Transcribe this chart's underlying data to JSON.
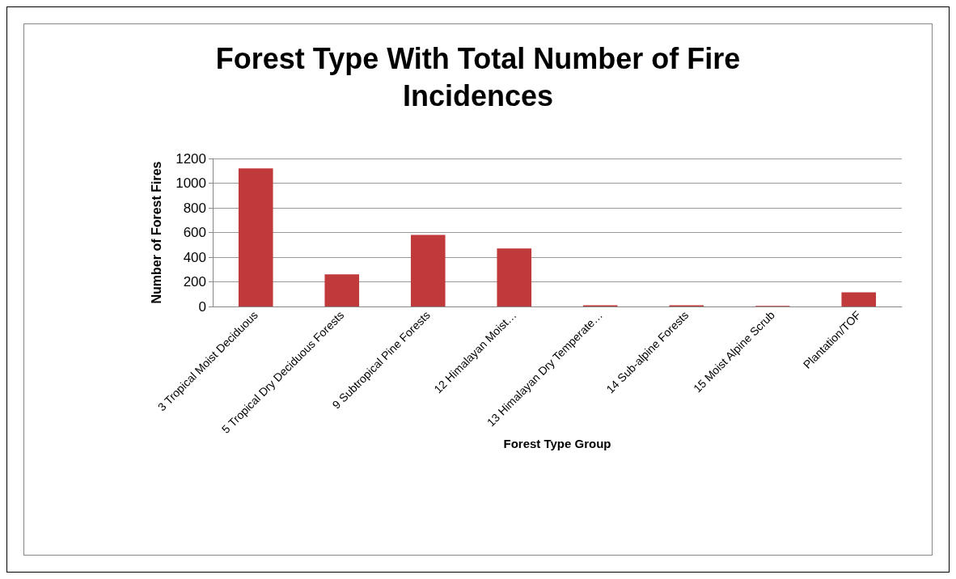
{
  "chart_data": {
    "type": "bar",
    "title": "Forest Type With Total Number of Fire\nIncidences",
    "xlabel": "Forest Type Group",
    "ylabel": "Number of Forest Fires",
    "categories": [
      "3 Tropical Moist Deciduous",
      "5 Tropical Dry Deciduous Forests",
      "9 Subtropical Pine Forests",
      "12 Himalayan Moist…",
      "13 Himalayan Dry Temperate…",
      "14 Sub-alpine Forests",
      "15 Moist Alpine Scrub",
      "Plantation/TOF"
    ],
    "values": [
      1120,
      260,
      580,
      470,
      10,
      10,
      5,
      115
    ],
    "color": "#c0393b",
    "ylim": [
      0,
      1200
    ],
    "yticks": [
      0,
      200,
      400,
      600,
      800,
      1000,
      1200
    ],
    "grid": "y"
  }
}
